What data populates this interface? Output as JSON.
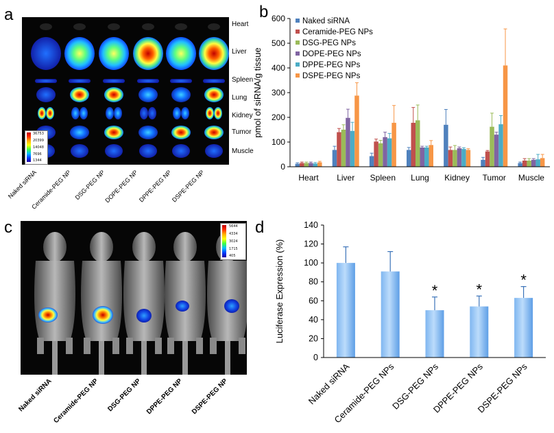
{
  "panels": {
    "a": {
      "letter": "a",
      "organs": [
        "Heart",
        "Liver",
        "Spleen",
        "Lung",
        "Kidney",
        "Tumor",
        "Muscle"
      ],
      "groups": [
        "Naked siRNA",
        "Ceramide-PEG NP",
        "DSG-PEG NP",
        "DOPE-PEG NP",
        "DPPE-PEG NP",
        "DSPE-PEG NP"
      ],
      "scale_ticks": [
        "36753",
        "20399",
        "14048",
        "7696",
        "1344"
      ]
    },
    "b": {
      "letter": "b"
    },
    "c": {
      "letter": "c",
      "groups": [
        "Naked siRNA",
        "Ceramide-PEG NP",
        "DSG-PEG NP",
        "DPPE-PEG NP",
        "DSPE-PEG NP"
      ],
      "scale_ticks": [
        "5644",
        "4334",
        "3024",
        "1715",
        "405"
      ]
    },
    "d": {
      "letter": "d"
    }
  },
  "chart_data": [
    {
      "type": "bar",
      "panel": "b",
      "title": "",
      "xlabel": "",
      "ylabel": "pmol of siRNA/g tissue",
      "ylim": [
        0,
        600
      ],
      "yticks": [
        0,
        100,
        200,
        300,
        400,
        500,
        600
      ],
      "categories": [
        "Heart",
        "Liver",
        "Spleen",
        "Lung",
        "Kidney",
        "Tumor",
        "Muscle"
      ],
      "legend_position": "top-left",
      "series": [
        {
          "name": "Naked siRNA",
          "color": "#4F81BD",
          "values": [
            12,
            68,
            43,
            68,
            170,
            28,
            15
          ],
          "errors": [
            4,
            15,
            12,
            10,
            62,
            10,
            4
          ]
        },
        {
          "name": "Ceramide-PEG NPs",
          "color": "#C0504D",
          "values": [
            15,
            140,
            102,
            178,
            68,
            62,
            25
          ],
          "errors": [
            4,
            15,
            10,
            62,
            12,
            4,
            8
          ]
        },
        {
          "name": "DSG-PEG NPs",
          "color": "#9BBB59",
          "values": [
            15,
            150,
            95,
            188,
            68,
            162,
            25
          ],
          "errors": [
            4,
            20,
            12,
            62,
            18,
            55,
            8
          ]
        },
        {
          "name": "DOPE-PEG NPs",
          "color": "#8064A2",
          "values": [
            15,
            198,
            120,
            78,
            75,
            130,
            28
          ],
          "errors": [
            4,
            35,
            20,
            5,
            5,
            10,
            5
          ]
        },
        {
          "name": "DPPE-PEG NPs",
          "color": "#4BACC6",
          "values": [
            13,
            145,
            115,
            78,
            72,
            172,
            30
          ],
          "errors": [
            4,
            35,
            20,
            5,
            5,
            35,
            20
          ]
        },
        {
          "name": "DSPE-PEG NPs",
          "color": "#F79646",
          "values": [
            18,
            288,
            178,
            88,
            68,
            410,
            35
          ],
          "errors": [
            4,
            52,
            70,
            18,
            5,
            148,
            15
          ]
        }
      ]
    },
    {
      "type": "bar",
      "panel": "d",
      "title": "",
      "xlabel": "",
      "ylabel": "Luciferase Expression (%)",
      "ylim": [
        0,
        140
      ],
      "yticks": [
        0,
        20,
        40,
        60,
        80,
        100,
        120,
        140
      ],
      "categories": [
        "Naked siRNA",
        "Ceramide-PEG NPs",
        "DSG-PEG NPs",
        "DPPE-PEG NPs",
        "DSPE-PEG NPs"
      ],
      "values": [
        100,
        91,
        50,
        54,
        63
      ],
      "errors": [
        17,
        21,
        14,
        11,
        12
      ],
      "significance": [
        "",
        "",
        "*",
        "*",
        "*"
      ]
    }
  ]
}
